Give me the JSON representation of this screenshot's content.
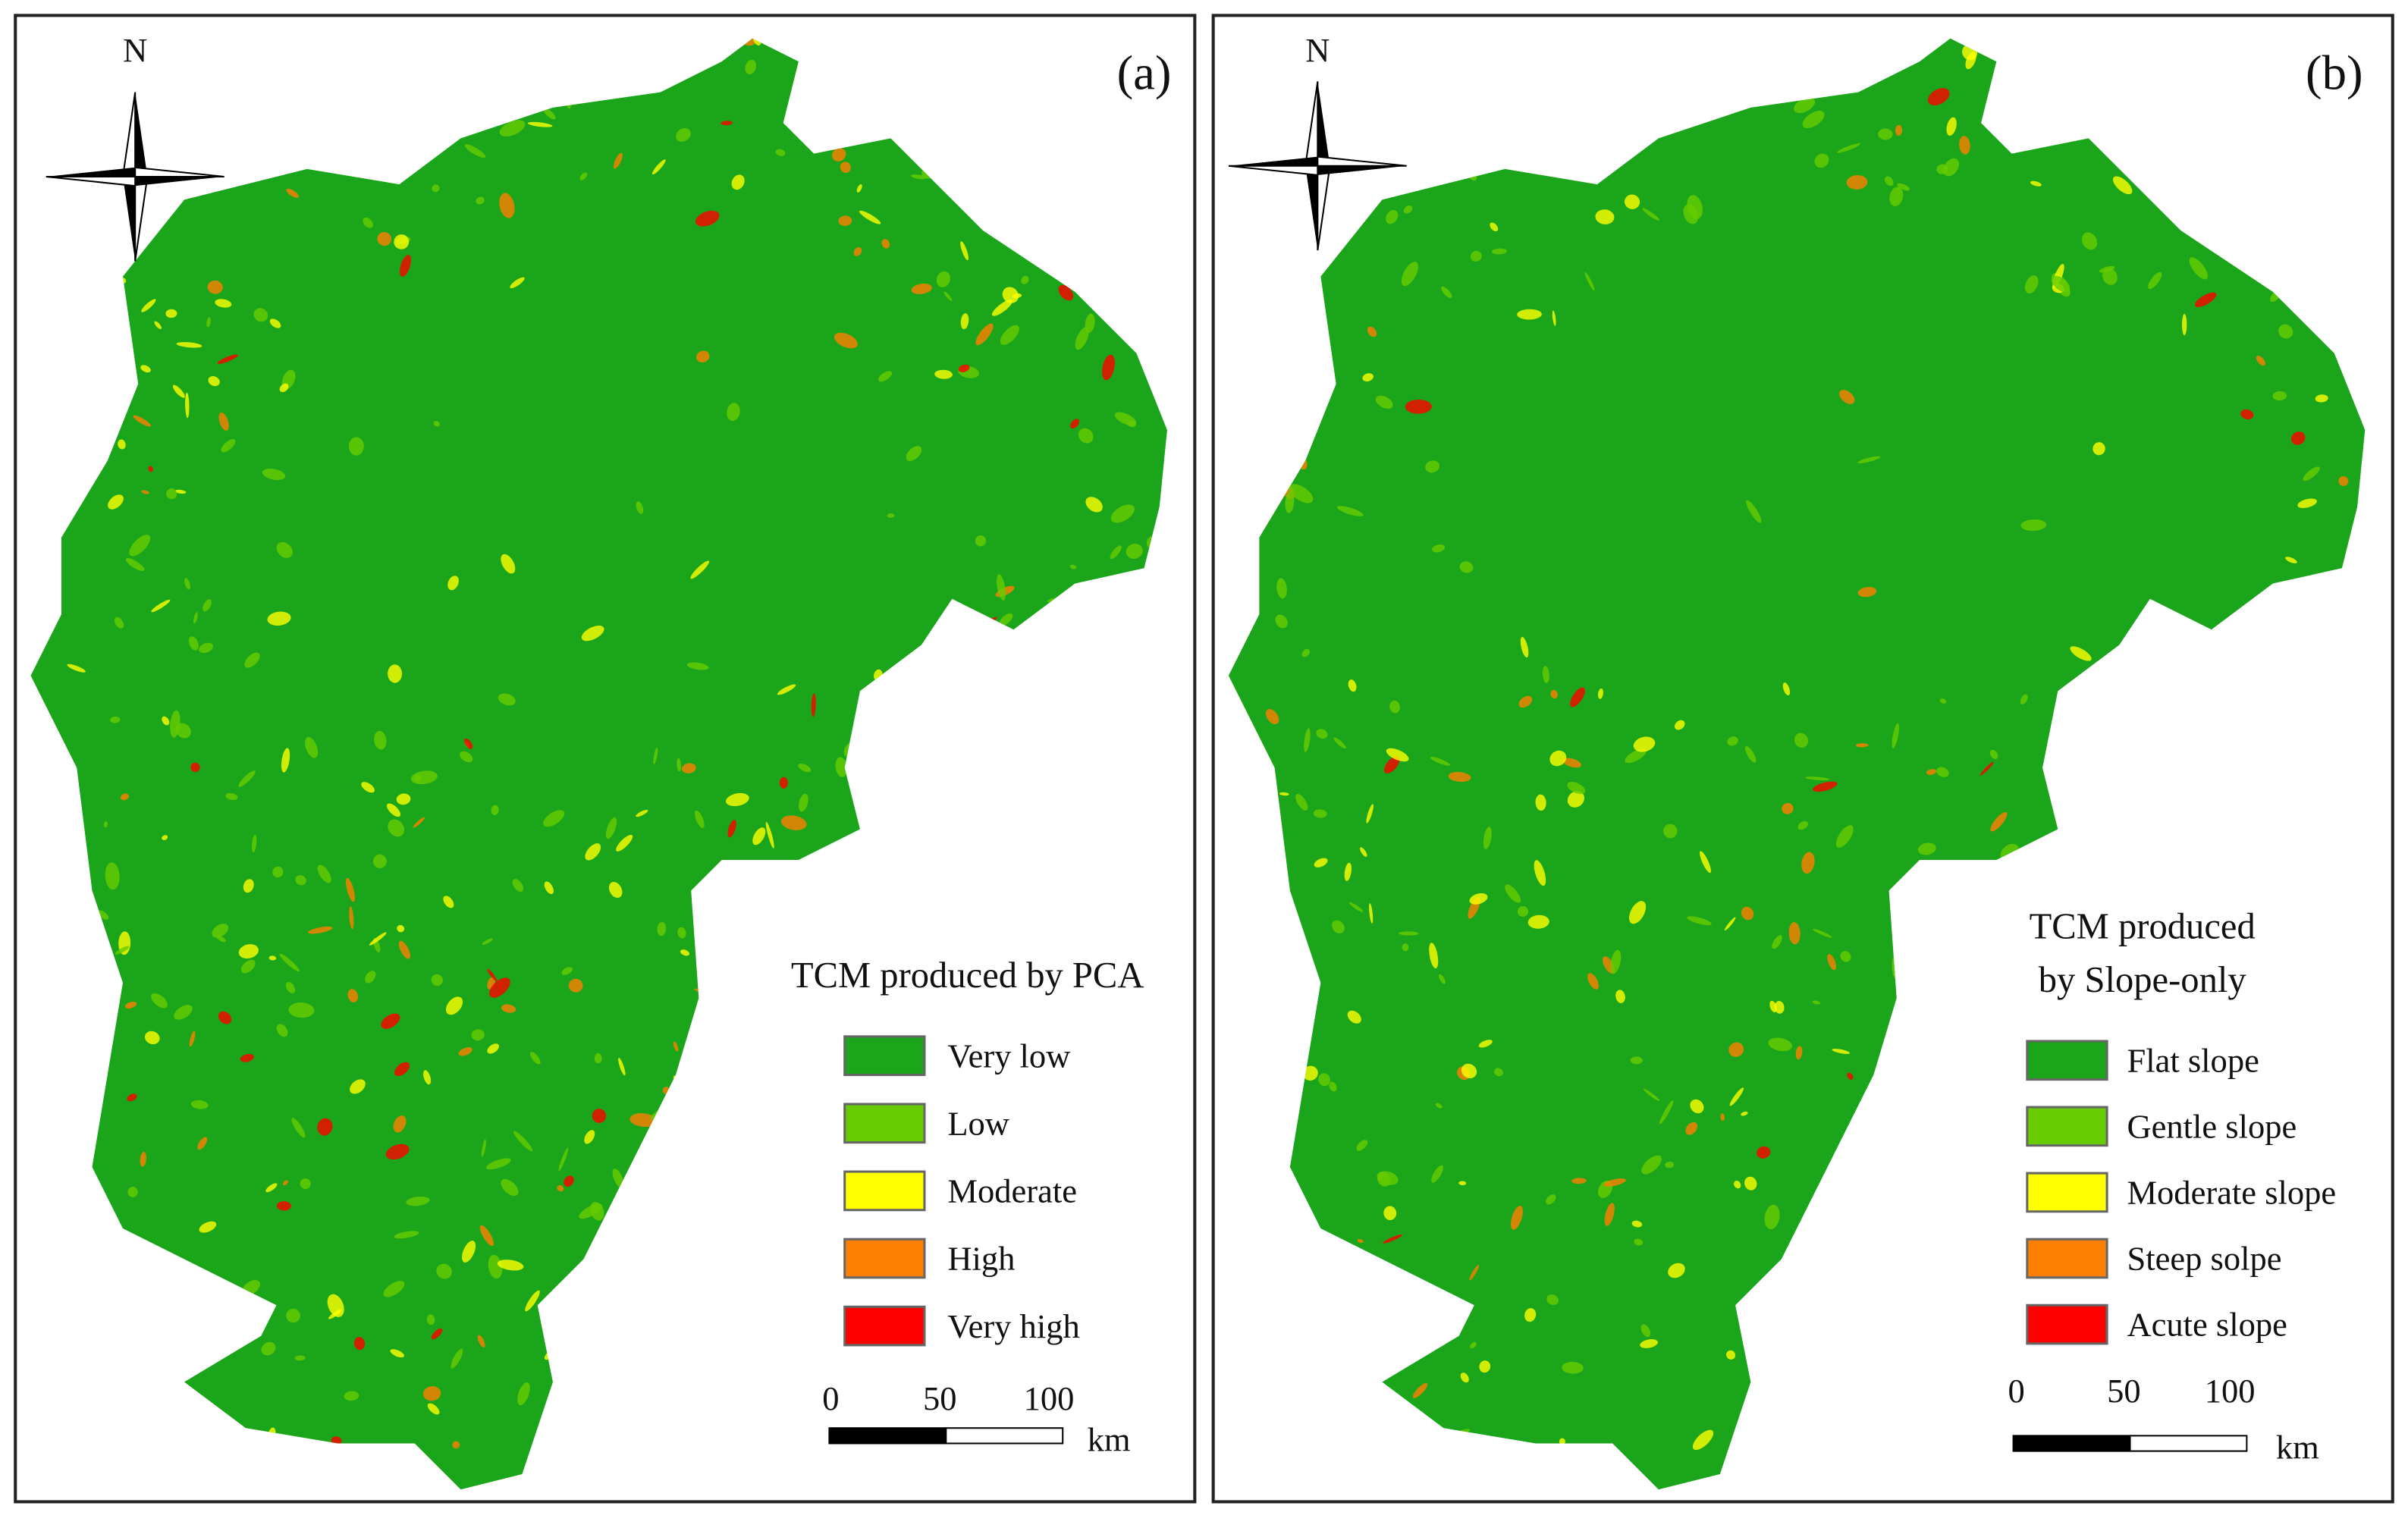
{
  "panels": [
    {
      "label": "(a)",
      "north": "N",
      "legend_title": [
        "TCM produced by PCA"
      ],
      "legend": [
        {
          "label": "Very low",
          "color": "#1aa51a"
        },
        {
          "label": "Low",
          "color": "#66cc00"
        },
        {
          "label": "Moderate",
          "color": "#ffff00"
        },
        {
          "label": "High",
          "color": "#ff8000"
        },
        {
          "label": "Very high",
          "color": "#ff0000"
        }
      ],
      "scale_labels": [
        "0",
        "50",
        "100"
      ],
      "scale_unit": "km"
    },
    {
      "label": "(b)",
      "north": "N",
      "legend_title": [
        "TCM produced",
        "by Slope-only"
      ],
      "legend": [
        {
          "label": "Flat slope",
          "color": "#1aa51a"
        },
        {
          "label": "Gentle slope",
          "color": "#66cc00"
        },
        {
          "label": "Moderate slope",
          "color": "#ffff00"
        },
        {
          "label": "Steep solpe",
          "color": "#ff8000"
        },
        {
          "label": "Acute slope",
          "color": "#ff0000"
        }
      ],
      "scale_labels": [
        "0",
        "50",
        "100"
      ],
      "scale_unit": "km"
    }
  ]
}
